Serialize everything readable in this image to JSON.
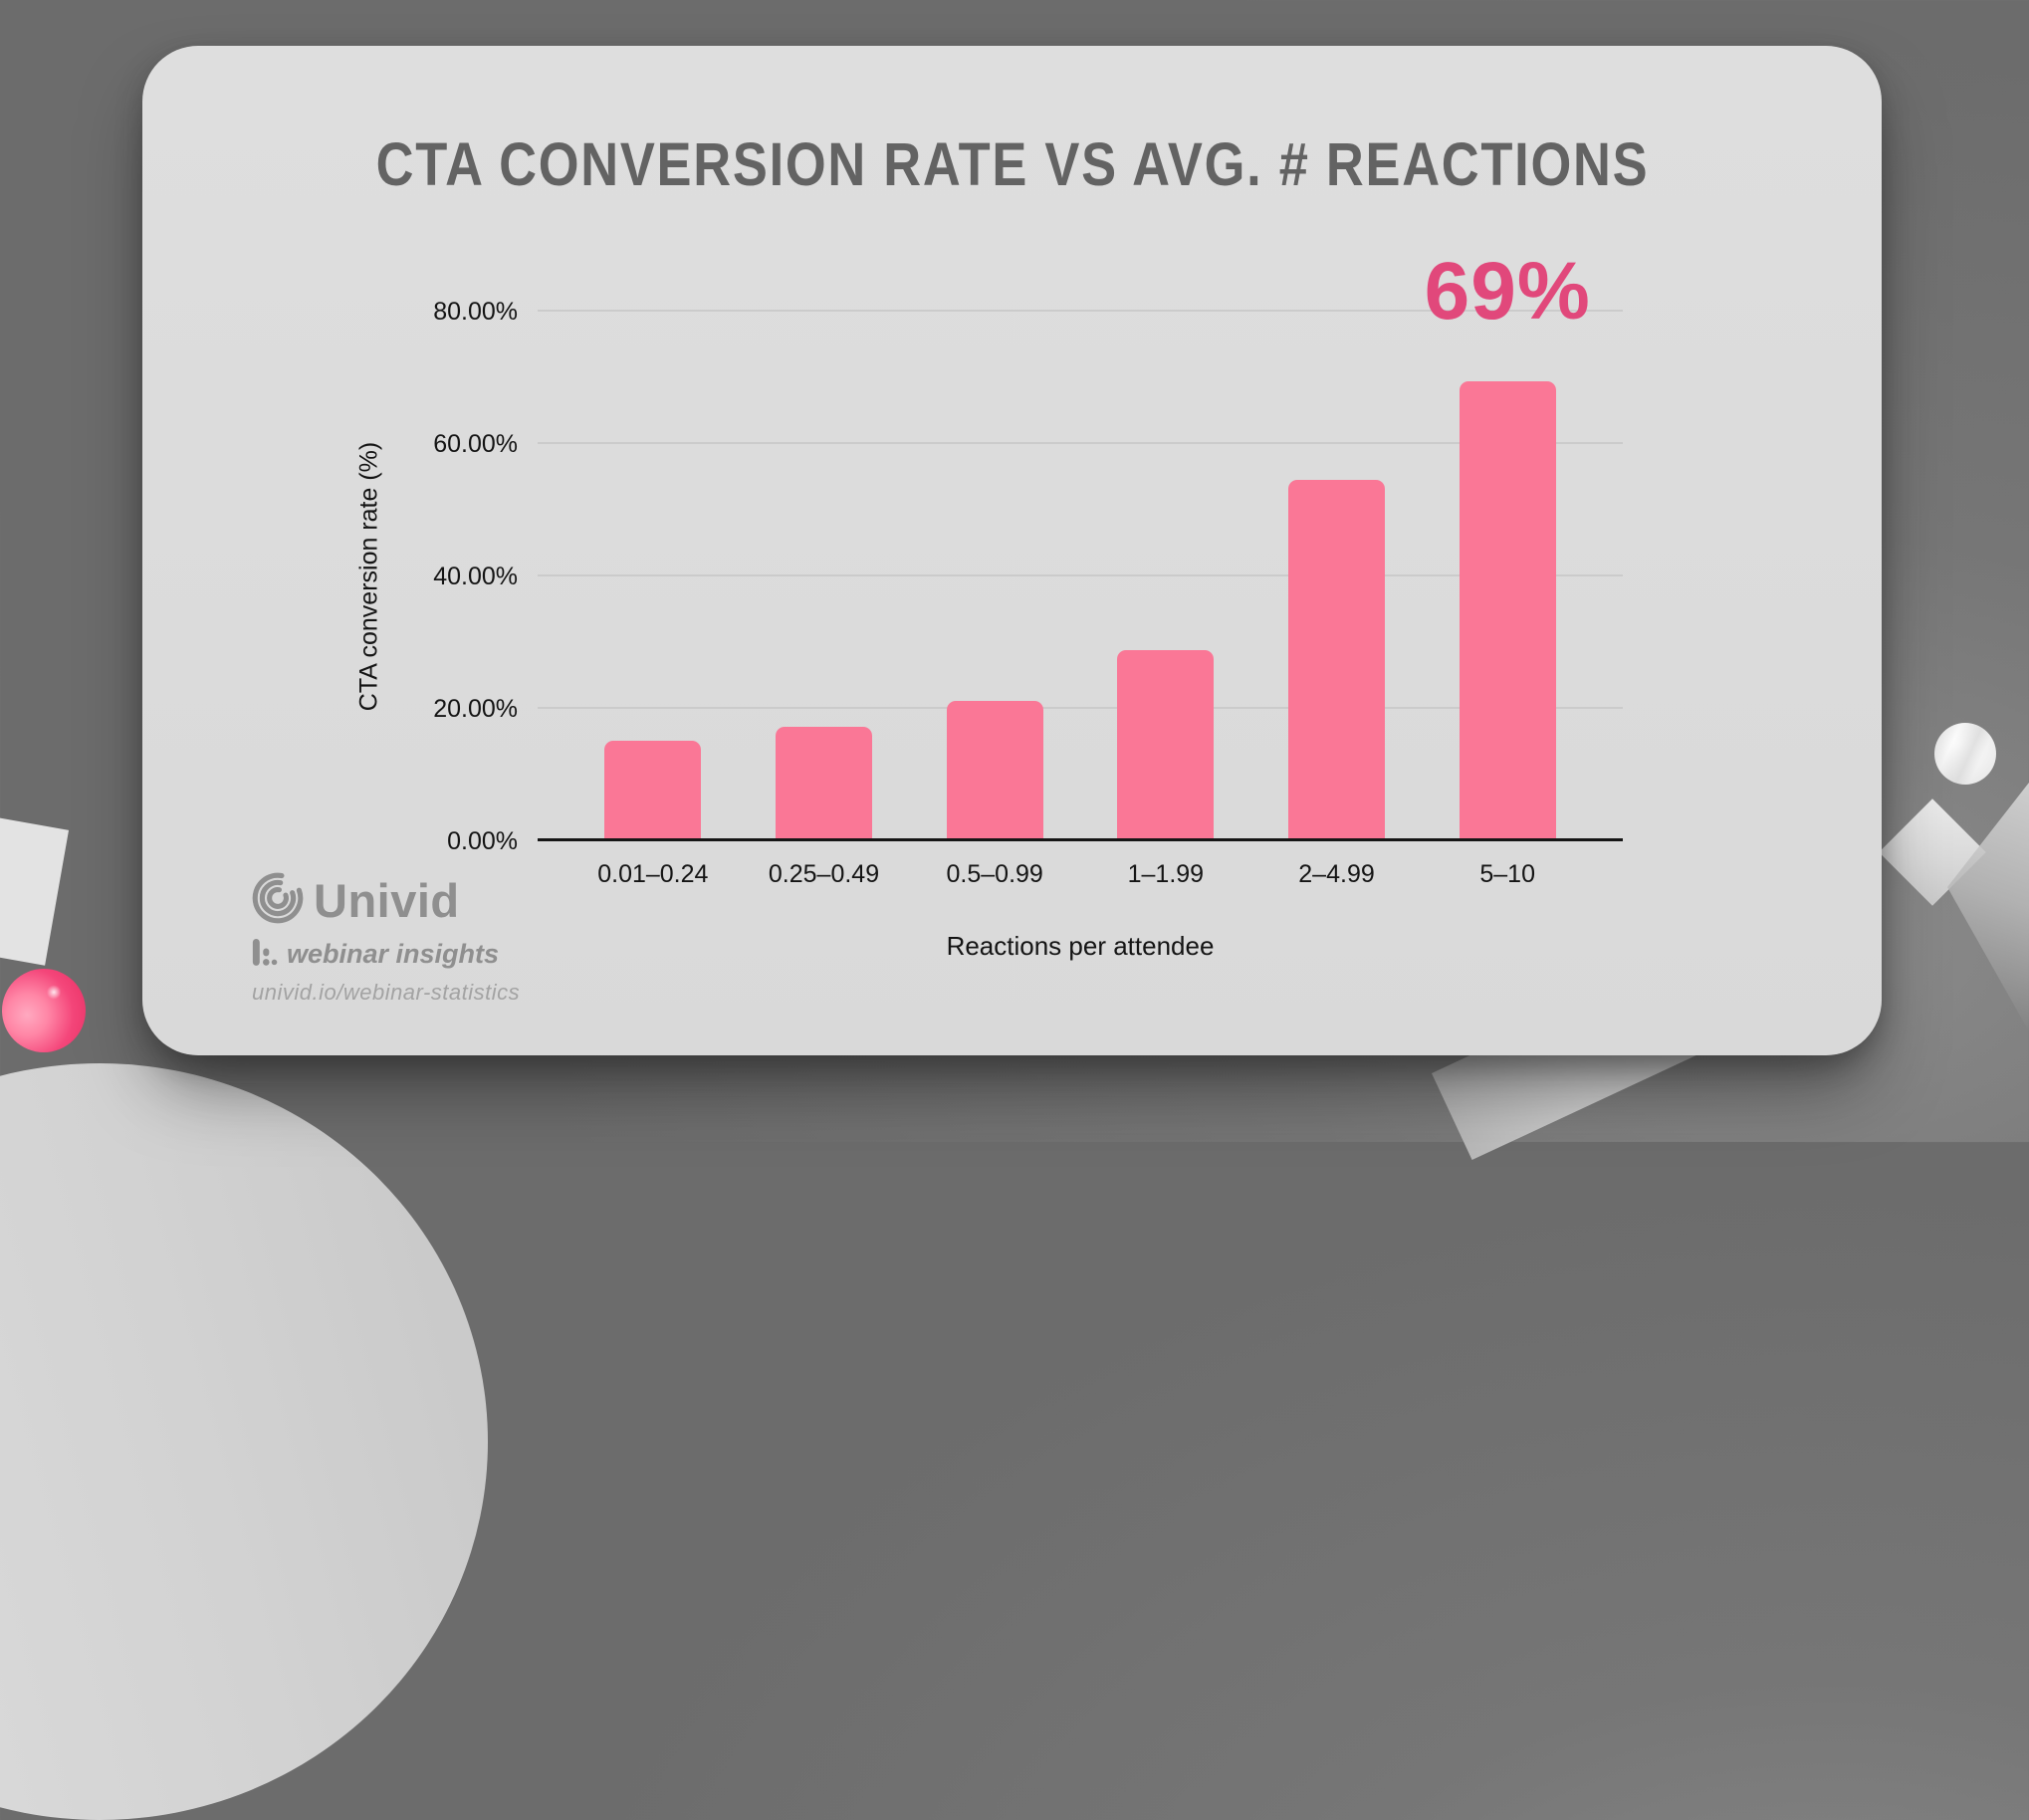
{
  "title": "CTA CONVERSION RATE VS AVG. # REACTIONS",
  "chart_data": {
    "type": "bar",
    "categories": [
      "0.01–0.24",
      "0.25–0.49",
      "0.5–0.99",
      "1–1.99",
      "2–4.99",
      "5–10"
    ],
    "values": [
      14.7,
      16.9,
      20.7,
      28.4,
      54.2,
      69
    ],
    "title": "CTA CONVERSION RATE VS AVG. # REACTIONS",
    "xlabel": "Reactions per attendee",
    "ylabel": "CTA conversion rate (%)",
    "ylim": [
      0,
      80
    ],
    "ytick_labels": [
      "0.00%",
      "20.00%",
      "40.00%",
      "60.00%",
      "80.00%"
    ],
    "grid": true,
    "legend": "none",
    "annotation": {
      "text": "69%",
      "bar_index": 5
    }
  },
  "branding": {
    "logo_text": "Univid",
    "tagline": "webinar insights",
    "url": "univid.io/webinar-statistics"
  },
  "colors": {
    "background": "#767676",
    "card": "#dcdcdc",
    "bar": "#FA7796",
    "annotation": "#E1487B",
    "title": "#636363",
    "axis": "#161616",
    "gridline": "#cbcbcb",
    "logo": "#8f8f8f"
  }
}
